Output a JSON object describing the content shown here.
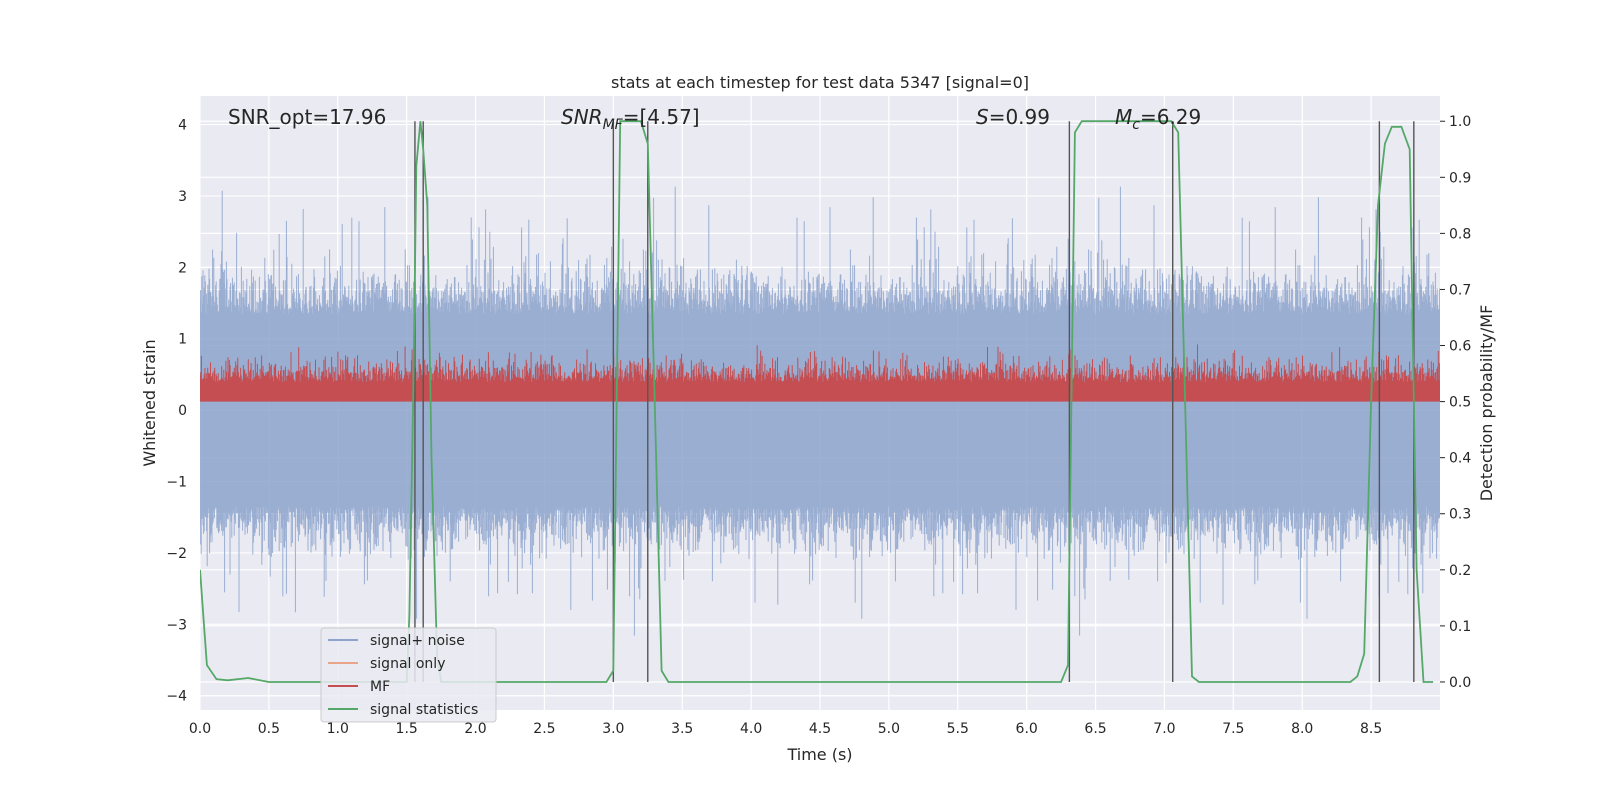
{
  "chart_data": {
    "type": "line",
    "title": "stats at each timestep for test data 5347 [signal=0]",
    "xlabel": "Time (s)",
    "ylabel": "Whitened strain",
    "y2label": "Detection probability/MF",
    "xlim": [
      0,
      9
    ],
    "ylim": [
      -4.2,
      4.4
    ],
    "y2lim": [
      -0.05,
      1.045
    ],
    "xticks": [
      0.0,
      0.5,
      1.0,
      1.5,
      2.0,
      2.5,
      3.0,
      3.5,
      4.0,
      4.5,
      5.0,
      5.5,
      6.0,
      6.5,
      7.0,
      7.5,
      8.0,
      8.5
    ],
    "xtick_labels": [
      "0.0",
      "0.5",
      "1.0",
      "1.5",
      "2.0",
      "2.5",
      "3.0",
      "3.5",
      "4.0",
      "4.5",
      "5.0",
      "5.5",
      "6.0",
      "6.5",
      "7.0",
      "7.5",
      "8.0",
      "8.5"
    ],
    "yticks": [
      4,
      3,
      2,
      1,
      0,
      -1,
      -2,
      -3,
      -4
    ],
    "ytick_labels": [
      "4",
      "3",
      "2",
      "1",
      "0",
      "−1",
      "−2",
      "−3",
      "−4"
    ],
    "y2ticks": [
      1.0,
      0.9,
      0.8,
      0.7,
      0.6,
      0.5,
      0.4,
      0.3,
      0.2,
      0.1,
      0.0
    ],
    "y2tick_labels": [
      "1.0",
      "0.9",
      "0.8",
      "0.7",
      "0.6",
      "0.5",
      "0.4",
      "0.3",
      "0.2",
      "0.1",
      "0.0"
    ],
    "annotations": {
      "snr_opt": "SNR_opt=17.96",
      "snr_mf_main": "SNR",
      "snr_mf_sub": "MF",
      "snr_mf_value": "=[4.57]",
      "s_main": "S",
      "s_value": "=0.99",
      "mc_main": "M",
      "mc_sub": "c",
      "mc_value": "=6.29"
    },
    "legend": {
      "location": "lower-left",
      "entries": [
        {
          "label": "signal+ noise",
          "color": "#8ca3cc"
        },
        {
          "label": "signal only",
          "color": "#e8a58a"
        },
        {
          "label": "MF",
          "color": "#c44e52"
        },
        {
          "label": "signal statistics",
          "color": "#55a868"
        }
      ]
    },
    "series": [
      {
        "name": "signal+ noise",
        "color": "#8ca3cc",
        "style": "dense noise band, envelope approx ±2 with peaks to ±3.6"
      },
      {
        "name": "signal only",
        "color": "#e8a58a",
        "values": []
      },
      {
        "name": "MF",
        "color": "#c44e52",
        "axis": "right",
        "style": "dense band approx 0.50 to 0.63"
      },
      {
        "name": "signal statistics",
        "color": "#55a868",
        "axis": "right",
        "x": [
          0.0,
          0.05,
          0.12,
          0.2,
          0.35,
          0.5,
          1.0,
          1.5,
          1.52,
          1.55,
          1.57,
          1.6,
          1.62,
          1.65,
          1.68,
          1.72,
          1.75,
          1.8,
          2.0,
          2.5,
          2.95,
          3.0,
          3.05,
          3.1,
          3.2,
          3.25,
          3.3,
          3.35,
          3.4,
          3.5,
          4.0,
          5.0,
          6.0,
          6.25,
          6.3,
          6.35,
          6.4,
          6.5,
          7.0,
          7.05,
          7.1,
          7.15,
          7.2,
          7.25,
          7.3,
          7.5,
          8.0,
          8.35,
          8.4,
          8.45,
          8.5,
          8.55,
          8.6,
          8.65,
          8.72,
          8.78,
          8.83,
          8.88,
          8.95
        ],
        "y": [
          0.2,
          0.03,
          0.005,
          0.003,
          0.007,
          0.0,
          0.0,
          0.0,
          0.12,
          0.55,
          0.92,
          1.0,
          0.95,
          0.85,
          0.4,
          0.05,
          0.0,
          0.0,
          0.0,
          0.0,
          0.0,
          0.02,
          1.0,
          1.0,
          1.0,
          0.96,
          0.5,
          0.02,
          0.0,
          0.0,
          0.0,
          0.0,
          0.0,
          0.0,
          0.03,
          0.98,
          1.0,
          1.0,
          1.0,
          1.0,
          0.98,
          0.5,
          0.01,
          0.0,
          0.0,
          0.0,
          0.0,
          0.0,
          0.01,
          0.05,
          0.5,
          0.85,
          0.96,
          0.99,
          0.99,
          0.95,
          0.2,
          0.0,
          0.0
        ]
      }
    ],
    "vertical_markers": [
      1.56,
      1.62,
      3.0,
      3.25,
      6.31,
      7.06,
      8.56,
      8.81
    ]
  }
}
